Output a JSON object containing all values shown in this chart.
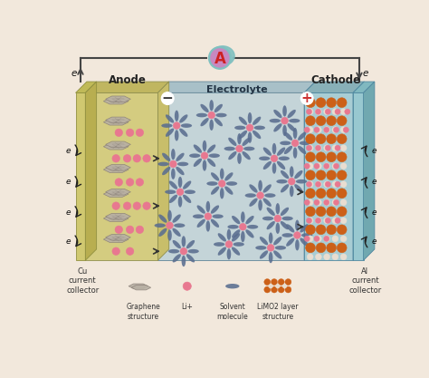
{
  "bg_color": "#f2e8dc",
  "anode_color": "#d4cc80",
  "anode_side_color": "#c8be6a",
  "anode_top_color": "#c0b660",
  "cathode_color": "#a8cdd4",
  "cathode_side_color": "#90b8c0",
  "cathode_top_color": "#88b0b8",
  "electrolyte_front": "#c4d4d8",
  "electrolyte_top": "#a8c0c8",
  "electrolyte_side": "#9ab4bc",
  "cu_color": "#d0c870",
  "al_color": "#98c8d0",
  "graphene_color": "#b8b0a4",
  "graphene_edge": "#8a8078",
  "li_color": "#e87890",
  "li_edge": "#c05070",
  "solvent_color": "#5a6e90",
  "limo2_orange": "#cc6018",
  "limo2_orange_edge": "#994010",
  "limo2_white": "#e8ddd0",
  "limo2_white_edge": "#c0b0a0",
  "wire_color": "#444444",
  "ammeter_outer": "#80c0c0",
  "ammeter_inner": "#c888c0",
  "ammeter_text": "#cc2222",
  "label_color": "#222222",
  "anode_label": "Anode",
  "cathode_label": "Cathode",
  "electrolyte_label": "Electrolyte",
  "cu_label": "Cu\ncurrent\ncollector",
  "al_label": "Al\ncurrent\ncollector",
  "legend_graphene": "Graphene\nstructure",
  "legend_li": "Li+",
  "legend_solvent": "Solvent\nmolecule",
  "legend_limo2": "LiMO2 layer\nstructure"
}
